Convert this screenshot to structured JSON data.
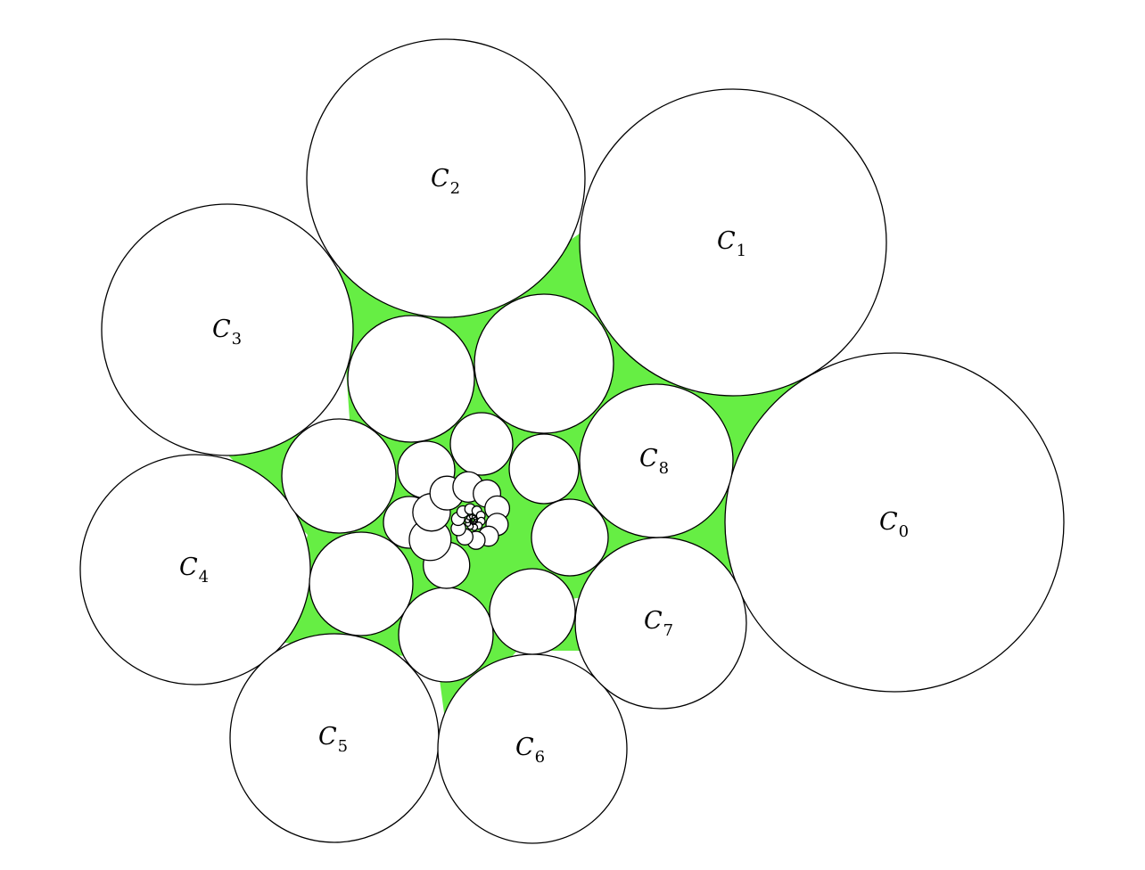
{
  "figure": {
    "fill_color": "#66ee44",
    "stroke_color": "#000000",
    "labels": [
      {
        "id": "c0",
        "letter": "C",
        "sub": "0"
      },
      {
        "id": "c1",
        "letter": "C",
        "sub": "1"
      },
      {
        "id": "c2",
        "letter": "C",
        "sub": "2"
      },
      {
        "id": "c3",
        "letter": "C",
        "sub": "3"
      },
      {
        "id": "c4",
        "letter": "C",
        "sub": "4"
      },
      {
        "id": "c5",
        "letter": "C",
        "sub": "5"
      },
      {
        "id": "c6",
        "letter": "C",
        "sub": "6"
      },
      {
        "id": "c7",
        "letter": "C",
        "sub": "7"
      },
      {
        "id": "c8",
        "letter": "C",
        "sub": "8"
      }
    ],
    "inner_spiral_circle_count": 36
  }
}
